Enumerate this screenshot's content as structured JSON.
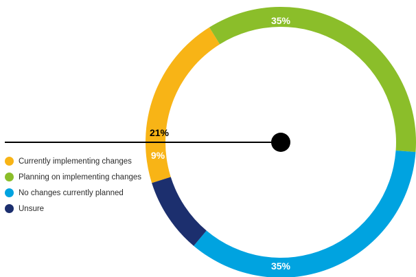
{
  "chart_data": {
    "type": "pie",
    "series": [
      {
        "name": "Currently implementing changes",
        "value": 21,
        "label": "21%",
        "color": "#F8B416"
      },
      {
        "name": "Planning on implementing changes",
        "value": 35,
        "label": "35%",
        "color": "#8BBE2A"
      },
      {
        "name": "No changes currently planned",
        "value": 35,
        "label": "35%",
        "color": "#00A3E0"
      },
      {
        "name": "Unsure",
        "value": 9,
        "label": "9%",
        "color": "#1C2F6E"
      }
    ],
    "legend_position": "left"
  }
}
